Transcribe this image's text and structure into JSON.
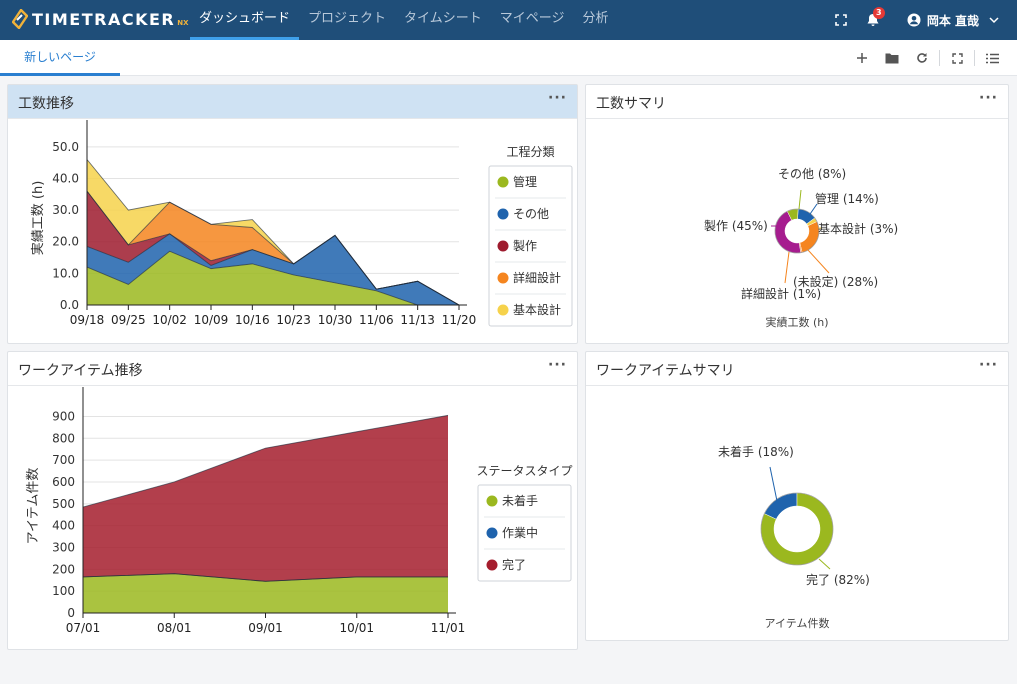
{
  "app": {
    "logo_text": "TIMETRACKER",
    "logo_suffix": "NX"
  },
  "nav": [
    {
      "label": "ダッシュボード",
      "active": true
    },
    {
      "label": "プロジェクト",
      "active": false
    },
    {
      "label": "タイムシート",
      "active": false
    },
    {
      "label": "マイページ",
      "active": false
    },
    {
      "label": "分析",
      "active": false
    }
  ],
  "header": {
    "notification_count": "3",
    "user_name": "岡本 直哉"
  },
  "tabs": [
    {
      "label": "新しいページ",
      "active": true
    }
  ],
  "colors": {
    "管理": "#9bb81f",
    "その他": "#1f63ad",
    "製作": "#9e1b2e",
    "詳細設計": "#f5851f",
    "基本設計": "#f6d24b",
    "未着手": "#9bb81f",
    "作業中": "#1f63ad",
    "完了": "#a51d2d",
    "製作_donut": "#a61d8f",
    "未設定_donut": "#f5851f"
  },
  "panels": {
    "effort_trend": {
      "title": "工数推移",
      "menu": "···"
    },
    "effort_summary": {
      "title": "工数サマリ",
      "menu": "···"
    },
    "workitem_trend": {
      "title": "ワークアイテム推移",
      "menu": "···"
    },
    "workitem_summary": {
      "title": "ワークアイテムサマリ",
      "menu": "···"
    }
  },
  "chart_data": [
    {
      "type": "area",
      "id": "effort_trend",
      "stacked": true,
      "categories": [
        "09/18",
        "09/25",
        "10/02",
        "10/09",
        "10/16",
        "10/23",
        "10/30",
        "11/06",
        "11/13",
        "11/20"
      ],
      "ylabel": "実績工数 (h)",
      "ylim": [
        0,
        55
      ],
      "yticks": [
        "0.0",
        "10.0",
        "20.0",
        "30.0",
        "40.0",
        "50.0"
      ],
      "legend_title": "工程分類",
      "legend_position": "right",
      "series": [
        {
          "name": "管理",
          "values": [
            12,
            6.5,
            17,
            11.5,
            13,
            9.5,
            7,
            4.5,
            0,
            0
          ]
        },
        {
          "name": "その他",
          "values": [
            6.5,
            7,
            5.5,
            1,
            4.5,
            3.5,
            15,
            0.5,
            7.5,
            0
          ]
        },
        {
          "name": "製作",
          "values": [
            17.5,
            5.5,
            0,
            1.5,
            0,
            0,
            0,
            0,
            0,
            0
          ]
        },
        {
          "name": "詳細設計",
          "values": [
            0,
            0,
            10,
            11.5,
            7,
            0,
            0,
            0,
            0,
            0
          ]
        },
        {
          "name": "基本設計",
          "values": [
            10,
            11,
            0,
            0,
            2.5,
            0,
            0,
            0,
            0,
            0
          ]
        }
      ]
    },
    {
      "type": "pie",
      "id": "effort_summary",
      "donut": true,
      "xlabel": "実績工数 (h)",
      "slices": [
        {
          "label": "管理 (14%)",
          "value": 14,
          "colorKey": "その他"
        },
        {
          "label": "基本設計 (3%)",
          "value": 3,
          "colorKey": "基本設計"
        },
        {
          "label": "(未設定) (28%)",
          "value": 28,
          "colorKey": "未設定_donut"
        },
        {
          "label": "詳細設計 (1%)",
          "value": 1,
          "colorKey": "詳細設計"
        },
        {
          "label": "製作 (45%)",
          "value": 45,
          "colorKey": "製作_donut"
        },
        {
          "label": "その他 (8%)",
          "value": 8,
          "colorKey": "管理"
        }
      ]
    },
    {
      "type": "area",
      "id": "workitem_trend",
      "stacked": true,
      "categories": [
        "07/01",
        "08/01",
        "09/01",
        "10/01",
        "11/01"
      ],
      "ylabel": "アイテム件数",
      "ylim": [
        0,
        980
      ],
      "yticks": [
        "0",
        "100",
        "200",
        "300",
        "400",
        "500",
        "600",
        "700",
        "800",
        "900"
      ],
      "legend_title": "ステータスタイプ",
      "legend_position": "right",
      "series": [
        {
          "name": "未着手",
          "values": [
            165,
            180,
            145,
            165,
            165
          ]
        },
        {
          "name": "作業中",
          "values": [
            0,
            0,
            0,
            0,
            0
          ]
        },
        {
          "name": "完了",
          "values": [
            320,
            420,
            610,
            665,
            740
          ]
        }
      ]
    },
    {
      "type": "pie",
      "id": "workitem_summary",
      "donut": true,
      "xlabel": "アイテム件数",
      "slices": [
        {
          "label": "未着手 (18%)",
          "value": 18,
          "colorKey": "その他"
        },
        {
          "label": "完了 (82%)",
          "value": 82,
          "colorKey": "管理"
        }
      ]
    }
  ]
}
